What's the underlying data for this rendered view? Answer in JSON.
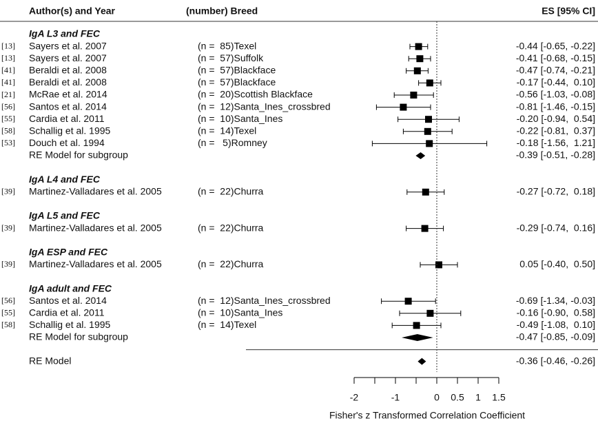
{
  "chart_data": {
    "type": "forest",
    "headers": {
      "author": "Author(s) and Year",
      "breed": "(number) Breed",
      "es": "ES [95% CI]"
    },
    "groups": [
      {
        "title": "IgA L3 and FEC",
        "studies": [
          {
            "ref": "[13]",
            "author": "Sayers et al. 2007",
            "breed": "(n =  85)Texel",
            "es": -0.44,
            "ci": [
              -0.65,
              -0.22
            ],
            "label": "-0.44 [-0.65, -0.22]"
          },
          {
            "ref": "[13]",
            "author": "Sayers et al. 2007",
            "breed": "(n =  57)Suffolk",
            "es": -0.41,
            "ci": [
              -0.68,
              -0.15
            ],
            "label": "-0.41 [-0.68, -0.15]"
          },
          {
            "ref": "[41]",
            "author": "Beraldi et al. 2008",
            "breed": "(n =  57)Blackface",
            "es": -0.47,
            "ci": [
              -0.74,
              -0.21
            ],
            "label": "-0.47 [-0.74, -0.21]"
          },
          {
            "ref": "[41]",
            "author": "Beraldi et al. 2008",
            "breed": "(n =  57)Blackface",
            "es": -0.17,
            "ci": [
              -0.44,
              0.1
            ],
            "label": "-0.17 [-0.44,  0.10]"
          },
          {
            "ref": "[21]",
            "author": "McRae et al. 2014",
            "breed": "(n =  20)Scottish Blackface",
            "es": -0.56,
            "ci": [
              -1.03,
              -0.08
            ],
            "label": "-0.56 [-1.03, -0.08]"
          },
          {
            "ref": "[56]",
            "author": "Santos et al. 2014",
            "breed": "(n =  12)Santa_Ines_crossbred",
            "es": -0.81,
            "ci": [
              -1.46,
              -0.15
            ],
            "label": "-0.81 [-1.46, -0.15]"
          },
          {
            "ref": "[55]",
            "author": "Cardia et al. 2011",
            "breed": "(n =  10)Santa_Ines",
            "es": -0.2,
            "ci": [
              -0.94,
              0.54
            ],
            "label": "-0.20 [-0.94,  0.54]"
          },
          {
            "ref": "[58]",
            "author": "Schallig et al. 1995",
            "breed": "(n =  14)Texel",
            "es": -0.22,
            "ci": [
              -0.81,
              0.37
            ],
            "label": "-0.22 [-0.81,  0.37]"
          },
          {
            "ref": "[53]",
            "author": "Douch et al. 1994",
            "breed": "(n =   5)Romney",
            "es": -0.18,
            "ci": [
              -1.56,
              1.21
            ],
            "label": "-0.18 [-1.56,  1.21]"
          }
        ],
        "summary": {
          "name": "RE Model for subgroup",
          "es": -0.39,
          "ci": [
            -0.51,
            -0.28
          ],
          "label": "-0.39 [-0.51, -0.28]"
        }
      },
      {
        "title": "IgA L4 and FEC",
        "studies": [
          {
            "ref": "[39]",
            "author": "Martinez-Valladares et al. 2005",
            "breed": "(n =  22)Churra",
            "es": -0.27,
            "ci": [
              -0.72,
              0.18
            ],
            "label": "-0.27 [-0.72,  0.18]"
          }
        ]
      },
      {
        "title": "IgA L5 and FEC",
        "studies": [
          {
            "ref": "[39]",
            "author": "Martinez-Valladares et al. 2005",
            "breed": "(n =  22)Churra",
            "es": -0.29,
            "ci": [
              -0.74,
              0.16
            ],
            "label": "-0.29 [-0.74,  0.16]"
          }
        ]
      },
      {
        "title": "IgA ESP and FEC",
        "studies": [
          {
            "ref": "[39]",
            "author": "Martinez-Valladares et al. 2005",
            "breed": "(n =  22)Churra",
            "es": 0.05,
            "ci": [
              -0.4,
              0.5
            ],
            "label": "0.05 [-0.40,  0.50]"
          }
        ]
      },
      {
        "title": "IgA adult and FEC",
        "studies": [
          {
            "ref": "[56]",
            "author": "Santos et al. 2014",
            "breed": "(n =  12)Santa_Ines_crossbred",
            "es": -0.69,
            "ci": [
              -1.34,
              -0.03
            ],
            "label": "-0.69 [-1.34, -0.03]"
          },
          {
            "ref": "[55]",
            "author": "Cardia et al. 2011",
            "breed": "(n =  10)Santa_Ines",
            "es": -0.16,
            "ci": [
              -0.9,
              0.58
            ],
            "label": "-0.16 [-0.90,  0.58]"
          },
          {
            "ref": "[58]",
            "author": "Schallig et al. 1995",
            "breed": "(n =  14)Texel",
            "es": -0.49,
            "ci": [
              -1.08,
              0.1
            ],
            "label": "-0.49 [-1.08,  0.10]"
          }
        ],
        "summary": {
          "name": "RE Model for subgroup",
          "es": -0.47,
          "ci": [
            -0.85,
            -0.09
          ],
          "label": "-0.47 [-0.85, -0.09]"
        }
      }
    ],
    "overall": {
      "name": "RE Model",
      "es": -0.36,
      "ci": [
        -0.46,
        -0.26
      ],
      "label": "-0.36 [-0.46, -0.26]"
    },
    "refline": 0,
    "xlim": [
      -2,
      1.5
    ],
    "xticks": [
      -2,
      -1,
      0,
      0.5,
      1,
      1.5
    ],
    "xminorticks": [
      -1.5,
      -0.5
    ],
    "xlabel": "Fisher's z Transformed Correlation Coefficient"
  }
}
